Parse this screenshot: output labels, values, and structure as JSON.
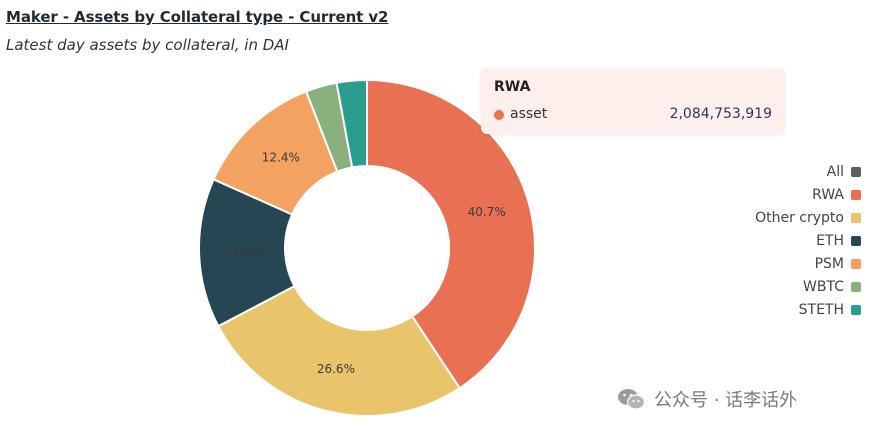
{
  "header": {
    "title": "Maker - Assets by Collateral type - Current v2",
    "subtitle": "Latest day assets by collateral, in DAI"
  },
  "tooltip": {
    "title": "RWA",
    "label": "asset",
    "value": "2,084,753,919",
    "color": "#e87053"
  },
  "legend": [
    {
      "label": "All",
      "color": "#5b5f66"
    },
    {
      "label": "RWA",
      "color": "#e87053"
    },
    {
      "label": "Other crypto",
      "color": "#e9c46a"
    },
    {
      "label": "ETH",
      "color": "#264653"
    },
    {
      "label": "PSM",
      "color": "#f4a261"
    },
    {
      "label": "WBTC",
      "color": "#8ab17d"
    },
    {
      "label": "STETH",
      "color": "#2a9d8f"
    }
  ],
  "watermark": {
    "text": "公众号 · 话李话外",
    "icon": "wechat-icon"
  },
  "chart_data": {
    "type": "pie",
    "donut": true,
    "title": "Maker - Assets by Collateral type - Current v2",
    "subtitle": "Latest day assets by collateral, in DAI",
    "slices": [
      {
        "name": "RWA",
        "value": 40.7,
        "label": "40.7%",
        "color": "#e87053"
      },
      {
        "name": "Other crypto",
        "value": 26.6,
        "label": "26.6%",
        "color": "#e9c46a"
      },
      {
        "name": "ETH",
        "value": 14.4,
        "label": "14.4%",
        "color": "#264653"
      },
      {
        "name": "PSM",
        "value": 12.4,
        "label": "12.4%",
        "color": "#f4a261"
      },
      {
        "name": "WBTC",
        "value": 3.0,
        "label": "",
        "color": "#8ab17d"
      },
      {
        "name": "STETH",
        "value": 2.9,
        "label": "",
        "color": "#2a9d8f"
      }
    ],
    "legend_position": "right"
  }
}
